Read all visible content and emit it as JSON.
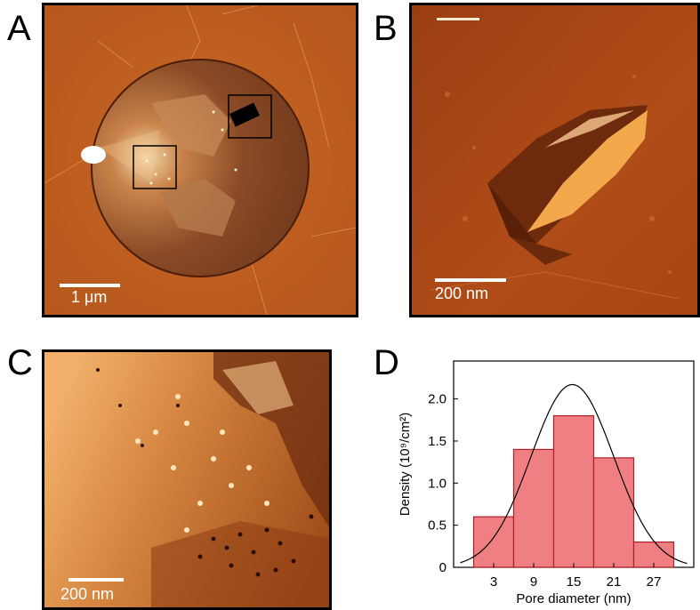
{
  "panels": {
    "a": {
      "label": "A",
      "scale_bar": "1 μm"
    },
    "b": {
      "label": "B",
      "scale_bar": "200 nm"
    },
    "c": {
      "label": "C",
      "scale_bar": "200 nm"
    },
    "d": {
      "label": "D"
    }
  },
  "colors": {
    "afm_dark": "#5a1e06",
    "afm_mid": "#b8551b",
    "afm_light": "#f2b46a",
    "bar_fill": "#ef7f82",
    "bar_stroke": "#b01e26",
    "curve": "#000000"
  },
  "chart_data": {
    "type": "bar",
    "categories": [
      "3",
      "9",
      "15",
      "21",
      "27"
    ],
    "x_ticks": [
      3,
      9,
      15,
      21,
      27
    ],
    "bins": [
      {
        "center": 3,
        "value": 0.6
      },
      {
        "center": 9,
        "value": 1.4
      },
      {
        "center": 15,
        "value": 1.8
      },
      {
        "center": 21,
        "value": 1.3
      },
      {
        "center": 27,
        "value": 0.3
      }
    ],
    "bin_width": 6,
    "y_ticks": [
      "0",
      "0.5",
      "1.0",
      "1.5",
      "2.0"
    ],
    "fit": {
      "type": "gaussian",
      "mean": 14.8,
      "sigma": 6.2,
      "peak": 2.17
    },
    "xlabel": "Pore diameter (nm)",
    "ylabel": "Density  (10⁹/cm²)",
    "xlim": [
      -3,
      33
    ],
    "ylim": [
      0,
      2.45
    ],
    "grid": false,
    "legend": "none"
  }
}
